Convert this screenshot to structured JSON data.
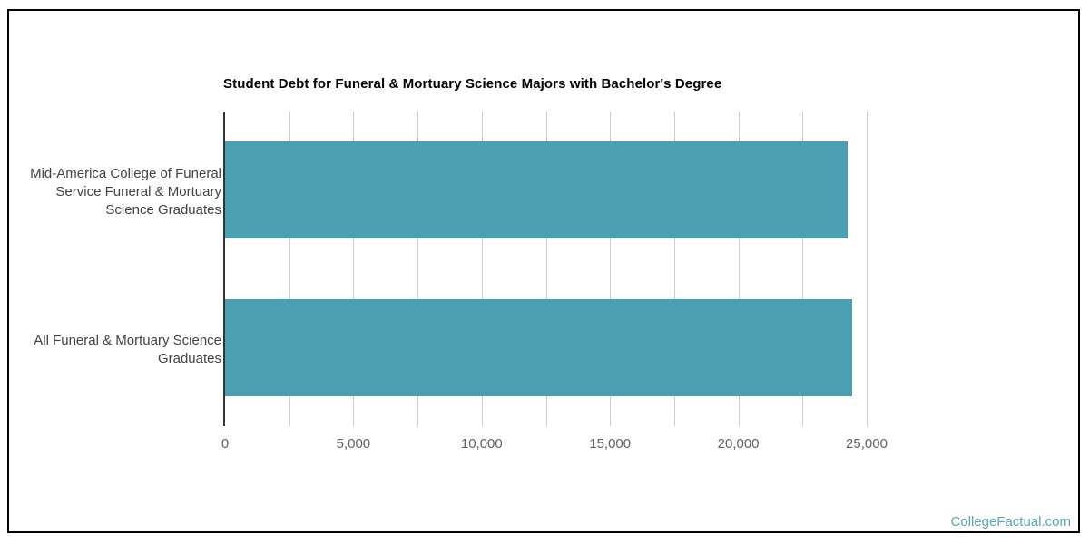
{
  "chart_data": {
    "type": "bar",
    "orientation": "horizontal",
    "title": "Student Debt for Funeral & Mortuary Science Majors with Bachelor's Degree",
    "categories": [
      "Mid-America College of Funeral Service Funeral & Mortuary Science Graduates",
      "All Funeral & Mortuary Science Graduates"
    ],
    "values": [
      24275,
      24450
    ],
    "xlim": [
      0,
      25000
    ],
    "x_tick_labels": [
      "0",
      "5,000",
      "10,000",
      "15,000",
      "20,000",
      "25,000"
    ],
    "minor_grid_interval": 2500,
    "grid": true,
    "legend": "none",
    "category_label_lines": [
      [
        "Mid-America College of Funeral",
        "Service Funeral & Mortuary",
        "Science Graduates"
      ],
      [
        "All Funeral & Mortuary Science",
        "Graduates"
      ]
    ]
  },
  "watermark": {
    "text": "CollegeFactual.com"
  },
  "colors": {
    "bar": "#4aa0b1",
    "axis": "#333333",
    "gridline": "#cccccc",
    "border": "#000000",
    "title": "#000000",
    "category_label": "#424242",
    "tick_label": "#616161",
    "watermark": "#57a7bd",
    "background": "#ffffff"
  }
}
